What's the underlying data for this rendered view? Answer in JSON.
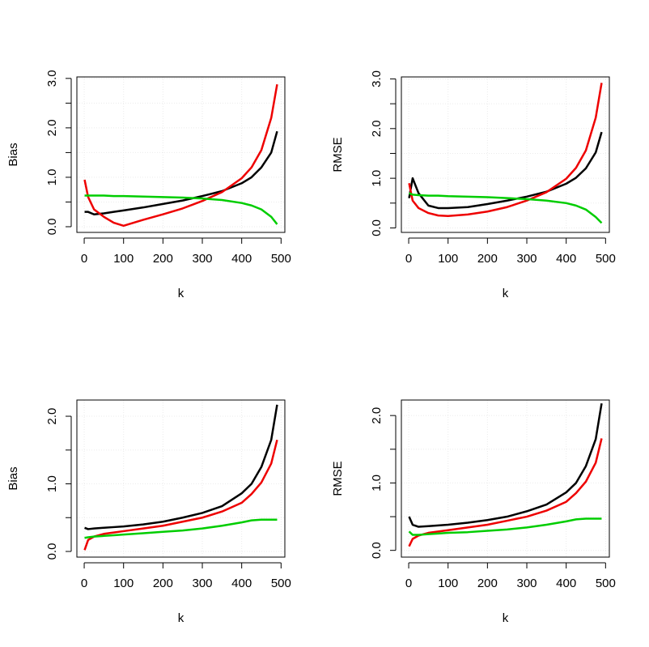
{
  "chart_data": [
    {
      "type": "line",
      "xlabel": "k",
      "ylabel": "Bias",
      "x": [
        1,
        10,
        25,
        50,
        75,
        100,
        150,
        200,
        250,
        300,
        350,
        400,
        425,
        450,
        475,
        490
      ],
      "xlim": [
        -18.6,
        509.6
      ],
      "xticks": [
        0,
        100,
        200,
        300,
        400,
        500
      ],
      "ylim": [
        -0.115,
        3.03
      ],
      "yticks": [
        {
          "value": 0,
          "label": "0.0"
        },
        {
          "value": 1,
          "label": "1.0"
        },
        {
          "value": 2,
          "label": "2.0"
        },
        {
          "value": 3,
          "label": "3.0"
        }
      ],
      "yminor": [
        0.5,
        1.5,
        2.5
      ],
      "grid": true,
      "series": [
        {
          "color": "#000000",
          "values": [
            0.3,
            0.3,
            0.25,
            0.27,
            0.3,
            0.33,
            0.39,
            0.46,
            0.53,
            0.62,
            0.72,
            0.88,
            1.0,
            1.2,
            1.5,
            1.93
          ]
        },
        {
          "color": "#ee0000",
          "values": [
            0.95,
            0.6,
            0.35,
            0.2,
            0.08,
            0.02,
            0.14,
            0.25,
            0.37,
            0.52,
            0.7,
            0.98,
            1.2,
            1.55,
            2.2,
            2.88
          ]
        },
        {
          "color": "#00cd00",
          "values": [
            0.63,
            0.63,
            0.63,
            0.63,
            0.62,
            0.62,
            0.61,
            0.6,
            0.59,
            0.57,
            0.54,
            0.48,
            0.43,
            0.35,
            0.2,
            0.05
          ]
        }
      ]
    },
    {
      "type": "line",
      "xlabel": "k",
      "ylabel": "RMSE",
      "x": [
        1,
        10,
        25,
        50,
        75,
        100,
        150,
        200,
        250,
        300,
        350,
        400,
        425,
        450,
        475,
        490
      ],
      "xlim": [
        -18.6,
        509.6
      ],
      "xticks": [
        0,
        100,
        200,
        300,
        400,
        500
      ],
      "ylim": [
        -0.09,
        3.04
      ],
      "yticks": [
        {
          "value": 0,
          "label": "0.0"
        },
        {
          "value": 1,
          "label": "1.0"
        },
        {
          "value": 2,
          "label": "2.0"
        },
        {
          "value": 3,
          "label": "3.0"
        }
      ],
      "yminor": [
        0.5,
        1.5,
        2.5
      ],
      "grid": true,
      "series": [
        {
          "color": "#000000",
          "values": [
            0.6,
            1.0,
            0.7,
            0.45,
            0.4,
            0.4,
            0.42,
            0.48,
            0.55,
            0.63,
            0.73,
            0.89,
            1.01,
            1.2,
            1.52,
            1.93
          ]
        },
        {
          "color": "#ee0000",
          "values": [
            0.9,
            0.55,
            0.4,
            0.3,
            0.25,
            0.24,
            0.27,
            0.33,
            0.42,
            0.55,
            0.72,
            0.99,
            1.21,
            1.56,
            2.22,
            2.92
          ]
        },
        {
          "color": "#00cd00",
          "values": [
            0.7,
            0.67,
            0.66,
            0.65,
            0.65,
            0.64,
            0.63,
            0.62,
            0.6,
            0.58,
            0.55,
            0.5,
            0.45,
            0.37,
            0.22,
            0.1
          ]
        }
      ]
    },
    {
      "type": "line",
      "xlabel": "k",
      "ylabel": "Bias",
      "x": [
        1,
        10,
        25,
        50,
        75,
        100,
        150,
        200,
        250,
        300,
        350,
        400,
        425,
        450,
        475,
        490
      ],
      "xlim": [
        -18.6,
        509.6
      ],
      "xticks": [
        0,
        100,
        200,
        300,
        400,
        500
      ],
      "ylim": [
        -0.084,
        2.24
      ],
      "yticks": [
        {
          "value": 0,
          "label": "0.0"
        },
        {
          "value": 1,
          "label": "1.0"
        },
        {
          "value": 2,
          "label": "2.0"
        }
      ],
      "yminor": [
        0.5,
        1.5
      ],
      "grid": true,
      "series": [
        {
          "color": "#000000",
          "values": [
            0.35,
            0.33,
            0.34,
            0.35,
            0.36,
            0.37,
            0.4,
            0.44,
            0.5,
            0.57,
            0.67,
            0.86,
            1.0,
            1.25,
            1.65,
            2.17
          ]
        },
        {
          "color": "#ee0000",
          "values": [
            0.02,
            0.17,
            0.22,
            0.26,
            0.28,
            0.3,
            0.34,
            0.38,
            0.44,
            0.5,
            0.59,
            0.72,
            0.85,
            1.02,
            1.3,
            1.65
          ]
        },
        {
          "color": "#00cd00",
          "values": [
            0.2,
            0.21,
            0.22,
            0.23,
            0.24,
            0.25,
            0.27,
            0.29,
            0.31,
            0.34,
            0.38,
            0.43,
            0.46,
            0.47,
            0.47,
            0.47
          ]
        }
      ]
    },
    {
      "type": "line",
      "xlabel": "k",
      "ylabel": "RMSE",
      "x": [
        1,
        10,
        25,
        50,
        75,
        100,
        150,
        200,
        250,
        300,
        350,
        400,
        425,
        450,
        475,
        490
      ],
      "xlim": [
        -18.6,
        509.6
      ],
      "xticks": [
        0,
        100,
        200,
        300,
        400,
        500
      ],
      "ylim": [
        -0.1,
        2.23
      ],
      "yticks": [
        {
          "value": 0,
          "label": "0.0"
        },
        {
          "value": 1,
          "label": "1.0"
        },
        {
          "value": 2,
          "label": "2.0"
        }
      ],
      "yminor": [
        0.5,
        1.5
      ],
      "grid": true,
      "series": [
        {
          "color": "#000000",
          "values": [
            0.5,
            0.38,
            0.35,
            0.36,
            0.37,
            0.38,
            0.41,
            0.45,
            0.5,
            0.58,
            0.68,
            0.86,
            1.0,
            1.25,
            1.65,
            2.18
          ]
        },
        {
          "color": "#ee0000",
          "values": [
            0.06,
            0.17,
            0.22,
            0.26,
            0.28,
            0.3,
            0.34,
            0.38,
            0.44,
            0.5,
            0.59,
            0.72,
            0.85,
            1.02,
            1.3,
            1.66
          ]
        },
        {
          "color": "#00cd00",
          "values": [
            0.28,
            0.23,
            0.23,
            0.24,
            0.25,
            0.26,
            0.27,
            0.29,
            0.31,
            0.34,
            0.38,
            0.43,
            0.46,
            0.47,
            0.47,
            0.47
          ]
        }
      ]
    }
  ]
}
